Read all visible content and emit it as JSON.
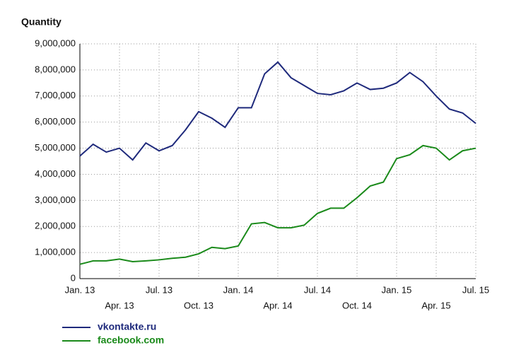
{
  "chart_data": {
    "type": "line",
    "title": "Quantity",
    "categories": [
      "Jan. 13",
      null,
      null,
      "Apr. 13",
      null,
      null,
      "Jul. 13",
      null,
      null,
      "Oct. 13",
      null,
      null,
      "Jan. 14",
      null,
      null,
      "Apr. 14",
      null,
      null,
      "Jul. 14",
      null,
      null,
      "Oct. 14",
      null,
      null,
      "Jan. 15",
      null,
      null,
      "Apr. 15",
      null,
      null,
      "Jul. 15"
    ],
    "series": [
      {
        "name": "vkontakte.ru",
        "color": "#1f2a7c",
        "values": [
          4700000,
          5150000,
          4850000,
          5000000,
          4550000,
          5200000,
          4900000,
          5100000,
          5700000,
          6400000,
          6150000,
          5800000,
          6550000,
          6550000,
          7850000,
          8300000,
          7700000,
          7400000,
          7100000,
          7050000,
          7200000,
          7500000,
          7250000,
          7300000,
          7500000,
          7900000,
          7550000,
          7000000,
          6500000,
          6350000,
          5950000
        ]
      },
      {
        "name": "facebook.com",
        "color": "#1a8a1a",
        "values": [
          550000,
          680000,
          680000,
          750000,
          650000,
          680000,
          720000,
          780000,
          820000,
          950000,
          1200000,
          1150000,
          1250000,
          2100000,
          2150000,
          1950000,
          1950000,
          2050000,
          2500000,
          2700000,
          2700000,
          3100000,
          3550000,
          3700000,
          4600000,
          4750000,
          5100000,
          5000000,
          4550000,
          4900000,
          5000000
        ]
      }
    ],
    "ylim": [
      0,
      9000000
    ],
    "yticks": [
      0,
      {
        "value": 1000000,
        "label": "1,000,000"
      },
      {
        "value": 2000000,
        "label": "2,000,000"
      },
      {
        "value": 3000000,
        "label": "3,000,000"
      },
      {
        "value": 4000000,
        "label": "4,000,000"
      },
      {
        "value": 5000000,
        "label": "5,000,000"
      },
      {
        "value": 6000000,
        "label": "6,000,000"
      },
      {
        "value": 7000000,
        "label": "7,000,000"
      },
      {
        "value": 8000000,
        "label": "8,000,000"
      },
      {
        "value": 9000000,
        "label": "9,000,000"
      }
    ],
    "grid": true
  }
}
